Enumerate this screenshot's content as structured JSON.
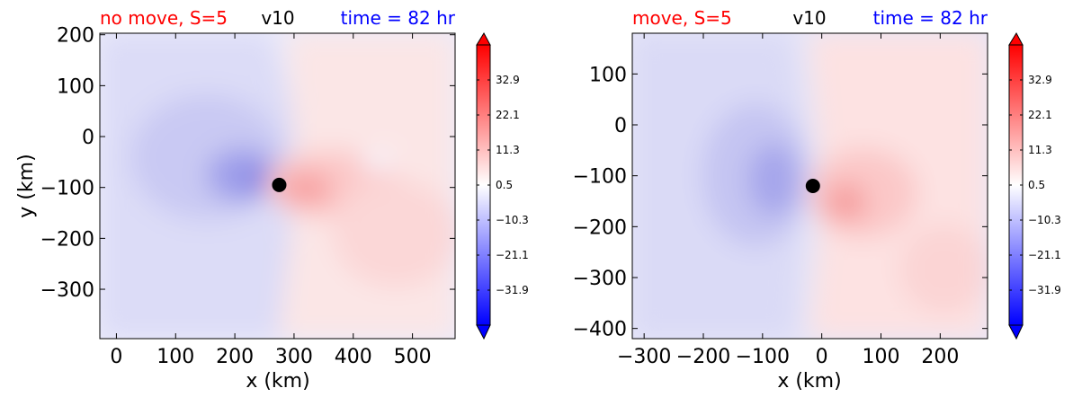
{
  "chart_data": [
    {
      "type": "heatmap",
      "title_left": "no move, S=5",
      "title_center": "v10",
      "title_right": "time = 82 hr",
      "xlabel": "x (km)",
      "ylabel": "y (km)",
      "xlim": [
        -28,
        572
      ],
      "ylim": [
        -397,
        203
      ],
      "xticks": [
        0,
        100,
        200,
        300,
        400,
        500
      ],
      "xtick_labels": [
        "0",
        "100",
        "200",
        "300",
        "400",
        "500"
      ],
      "yticks": [
        200,
        100,
        0,
        -100,
        -200,
        -300
      ],
      "ytick_labels": [
        "200",
        "100",
        "0",
        "−100",
        "−200",
        "−300"
      ],
      "marker": {
        "x": 275,
        "y": -95,
        "label": "storm center"
      },
      "field_extremes": [
        {
          "x": 250,
          "y": -85,
          "value": -30
        },
        {
          "x": 320,
          "y": -100,
          "value": 22
        }
      ],
      "colorbar": {
        "ticks": [
          32.9,
          22.1,
          11.3,
          0.5,
          -10.3,
          -21.1,
          -31.9
        ],
        "tick_labels": [
          "32.9",
          "22.1",
          "11.3",
          "0.5",
          "−10.3",
          "−21.1",
          "−31.9"
        ],
        "range": [
          -42.7,
          43.7
        ],
        "extend": "both",
        "cmap": "bwr"
      }
    },
    {
      "type": "heatmap",
      "title_left": "move, S=5",
      "title_center": "v10",
      "title_right": "time = 82 hr",
      "xlabel": "x (km)",
      "ylabel": "",
      "xlim": [
        -320,
        280
      ],
      "ylim": [
        -420,
        180
      ],
      "xticks": [
        -300,
        -200,
        -100,
        0,
        100,
        200
      ],
      "xtick_labels": [
        "−300",
        "−200",
        "−100",
        "0",
        "100",
        "200"
      ],
      "yticks": [
        100,
        0,
        -100,
        -200,
        -300,
        -400
      ],
      "ytick_labels": [
        "100",
        "0",
        "−100",
        "−200",
        "−300",
        "−400"
      ],
      "marker": {
        "x": -15,
        "y": -120,
        "label": "storm center"
      },
      "field_extremes": [
        {
          "x": -45,
          "y": -100,
          "value": -28
        },
        {
          "x": 40,
          "y": -155,
          "value": 22
        }
      ],
      "colorbar": {
        "ticks": [
          32.9,
          22.1,
          11.3,
          0.5,
          -10.3,
          -21.1,
          -31.9
        ],
        "tick_labels": [
          "32.9",
          "22.1",
          "11.3",
          "0.5",
          "−10.3",
          "−21.1",
          "−31.9"
        ],
        "range": [
          -42.7,
          43.7
        ],
        "extend": "both",
        "cmap": "bwr"
      }
    }
  ],
  "colors": {
    "title_left": "#ff0000",
    "title_center": "#000000",
    "title_right": "#0000ff",
    "marker": "#000000"
  }
}
